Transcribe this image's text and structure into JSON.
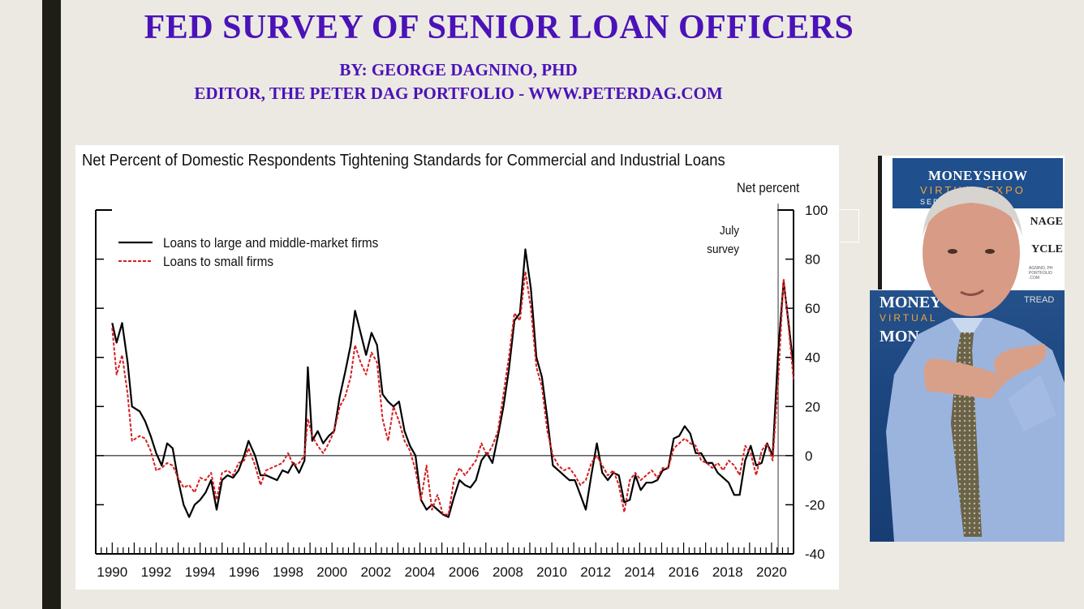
{
  "slide": {
    "title": "FED SURVEY OF SENIOR LOAN OFFICERS",
    "byline": "BY: GEORGE DAGNINO, PHD",
    "editor_line": "EDITOR, THE PETER DAG PORTFOLIO - WWW.PETERDAG.COM",
    "title_color": "#4a12b8"
  },
  "photo": {
    "banner_top_brand": "MONEYSHOW",
    "banner_top_line2": "VIRTUAL EXPO",
    "banner_top_line3": "SEPT 2020",
    "side_text_1": "NAGE",
    "side_text_2": "YCLE",
    "small_text": "AGNINO, PH PORTFOLIO .COM",
    "banner_low_1": "MONEY",
    "banner_low_2": "VIRTUAL",
    "banner_low_3": "MON",
    "banner_low_4": "TREAD"
  },
  "chart_data": {
    "type": "line",
    "title": "Net Percent of Domestic Respondents Tightening Standards for Commercial and Industrial Loans",
    "ylabel": "Net percent",
    "xlabel": "",
    "ylim": [
      -40,
      100
    ],
    "xlim": [
      1989.25,
      2021.0
    ],
    "yticks": [
      "100",
      "80",
      "60",
      "40",
      "20",
      "0",
      "-20",
      "-40"
    ],
    "xticks": [
      "1990",
      "1992",
      "1994",
      "1996",
      "1998",
      "2000",
      "2002",
      "2004",
      "2006",
      "2008",
      "2010",
      "2012",
      "2014",
      "2016",
      "2018",
      "2020"
    ],
    "annotation": {
      "text_line1": "July",
      "text_line2": "survey",
      "x": 2020.3
    },
    "legend_position": "top-left",
    "series": [
      {
        "name": "Loans to large and middle-market firms",
        "color": "#000000",
        "style": "solid",
        "points": [
          [
            1990.0,
            54
          ],
          [
            1990.2,
            46
          ],
          [
            1990.45,
            54
          ],
          [
            1990.7,
            38
          ],
          [
            1990.9,
            20
          ],
          [
            1991.25,
            18
          ],
          [
            1991.5,
            14
          ],
          [
            1991.75,
            8
          ],
          [
            1992.0,
            1
          ],
          [
            1992.25,
            -4
          ],
          [
            1992.5,
            5
          ],
          [
            1992.75,
            3
          ],
          [
            1993.0,
            -10
          ],
          [
            1993.25,
            -20
          ],
          [
            1993.5,
            -25
          ],
          [
            1993.75,
            -20
          ],
          [
            1994.0,
            -18
          ],
          [
            1994.25,
            -15
          ],
          [
            1994.5,
            -10
          ],
          [
            1994.75,
            -22
          ],
          [
            1995.0,
            -10
          ],
          [
            1995.25,
            -8
          ],
          [
            1995.5,
            -9
          ],
          [
            1995.75,
            -6
          ],
          [
            1996.0,
            0
          ],
          [
            1996.2,
            6
          ],
          [
            1996.5,
            0
          ],
          [
            1996.75,
            -8
          ],
          [
            1997.0,
            -8
          ],
          [
            1997.25,
            -9
          ],
          [
            1997.5,
            -10
          ],
          [
            1997.75,
            -6
          ],
          [
            1998.0,
            -7
          ],
          [
            1998.25,
            -3
          ],
          [
            1998.5,
            -7
          ],
          [
            1998.75,
            -2
          ],
          [
            1998.9,
            36
          ],
          [
            1999.1,
            6
          ],
          [
            1999.35,
            10
          ],
          [
            1999.6,
            5
          ],
          [
            1999.85,
            8
          ],
          [
            2000.1,
            10
          ],
          [
            2000.35,
            24
          ],
          [
            2000.6,
            34
          ],
          [
            2000.85,
            45
          ],
          [
            2001.05,
            59
          ],
          [
            2001.3,
            50
          ],
          [
            2001.55,
            41
          ],
          [
            2001.8,
            50
          ],
          [
            2002.05,
            45
          ],
          [
            2002.3,
            25
          ],
          [
            2002.55,
            22
          ],
          [
            2002.8,
            20
          ],
          [
            2003.05,
            22
          ],
          [
            2003.3,
            10
          ],
          [
            2003.55,
            4
          ],
          [
            2003.8,
            0
          ],
          [
            2004.05,
            -18
          ],
          [
            2004.3,
            -22
          ],
          [
            2004.55,
            -20
          ],
          [
            2004.8,
            -22
          ],
          [
            2005.05,
            -24
          ],
          [
            2005.3,
            -25
          ],
          [
            2005.55,
            -17
          ],
          [
            2005.8,
            -10
          ],
          [
            2006.05,
            -12
          ],
          [
            2006.3,
            -13
          ],
          [
            2006.55,
            -10
          ],
          [
            2006.8,
            -2
          ],
          [
            2007.05,
            1
          ],
          [
            2007.3,
            -3
          ],
          [
            2007.55,
            8
          ],
          [
            2007.8,
            20
          ],
          [
            2008.05,
            35
          ],
          [
            2008.3,
            55
          ],
          [
            2008.55,
            58
          ],
          [
            2008.8,
            84
          ],
          [
            2009.05,
            68
          ],
          [
            2009.3,
            40
          ],
          [
            2009.55,
            32
          ],
          [
            2009.8,
            15
          ],
          [
            2010.05,
            -4
          ],
          [
            2010.3,
            -6
          ],
          [
            2010.55,
            -8
          ],
          [
            2010.8,
            -10
          ],
          [
            2011.05,
            -10
          ],
          [
            2011.3,
            -16
          ],
          [
            2011.55,
            -22
          ],
          [
            2011.8,
            -8
          ],
          [
            2012.05,
            5
          ],
          [
            2012.3,
            -7
          ],
          [
            2012.55,
            -10
          ],
          [
            2012.8,
            -7
          ],
          [
            2013.05,
            -8
          ],
          [
            2013.3,
            -19
          ],
          [
            2013.55,
            -18
          ],
          [
            2013.8,
            -8
          ],
          [
            2014.05,
            -14
          ],
          [
            2014.3,
            -11
          ],
          [
            2014.55,
            -11
          ],
          [
            2014.8,
            -10
          ],
          [
            2015.05,
            -6
          ],
          [
            2015.3,
            -5
          ],
          [
            2015.55,
            7
          ],
          [
            2015.8,
            8
          ],
          [
            2016.05,
            12
          ],
          [
            2016.3,
            9
          ],
          [
            2016.55,
            1
          ],
          [
            2016.8,
            1
          ],
          [
            2017.05,
            -3
          ],
          [
            2017.3,
            -3
          ],
          [
            2017.55,
            -7
          ],
          [
            2017.8,
            -9
          ],
          [
            2018.05,
            -11
          ],
          [
            2018.3,
            -16
          ],
          [
            2018.55,
            -16
          ],
          [
            2018.8,
            -2
          ],
          [
            2019.05,
            4
          ],
          [
            2019.3,
            -4
          ],
          [
            2019.55,
            -3
          ],
          [
            2019.8,
            5
          ],
          [
            2020.05,
            0
          ],
          [
            2020.3,
            42
          ],
          [
            2020.55,
            71
          ],
          [
            2020.8,
            52
          ],
          [
            2021.0,
            36
          ]
        ]
      },
      {
        "name": "Loans to small firms",
        "color": "#d62020",
        "style": "dashed",
        "points": [
          [
            1990.0,
            52
          ],
          [
            1990.2,
            33
          ],
          [
            1990.45,
            41
          ],
          [
            1990.7,
            25
          ],
          [
            1990.9,
            6
          ],
          [
            1991.25,
            8
          ],
          [
            1991.5,
            7
          ],
          [
            1991.75,
            2
          ],
          [
            1992.0,
            -6
          ],
          [
            1992.25,
            -5
          ],
          [
            1992.5,
            -3
          ],
          [
            1992.75,
            -4
          ],
          [
            1993.0,
            -9
          ],
          [
            1993.25,
            -13
          ],
          [
            1993.5,
            -12
          ],
          [
            1993.75,
            -15
          ],
          [
            1994.0,
            -9
          ],
          [
            1994.25,
            -10
          ],
          [
            1994.5,
            -7
          ],
          [
            1994.75,
            -18
          ],
          [
            1995.0,
            -7
          ],
          [
            1995.25,
            -6
          ],
          [
            1995.5,
            -8
          ],
          [
            1995.75,
            -3
          ],
          [
            1996.0,
            -2
          ],
          [
            1996.2,
            3
          ],
          [
            1996.5,
            -4
          ],
          [
            1996.75,
            -12
          ],
          [
            1997.0,
            -6
          ],
          [
            1997.25,
            -5
          ],
          [
            1997.5,
            -4
          ],
          [
            1997.75,
            -3
          ],
          [
            1998.0,
            1
          ],
          [
            1998.25,
            -4
          ],
          [
            1998.5,
            -3
          ],
          [
            1998.75,
            0
          ],
          [
            1998.9,
            15
          ],
          [
            1999.1,
            8
          ],
          [
            1999.35,
            4
          ],
          [
            1999.6,
            1
          ],
          [
            1999.85,
            5
          ],
          [
            2000.1,
            10
          ],
          [
            2000.35,
            20
          ],
          [
            2000.6,
            24
          ],
          [
            2000.85,
            32
          ],
          [
            2001.05,
            45
          ],
          [
            2001.3,
            38
          ],
          [
            2001.55,
            33
          ],
          [
            2001.8,
            42
          ],
          [
            2002.05,
            38
          ],
          [
            2002.3,
            15
          ],
          [
            2002.55,
            6
          ],
          [
            2002.8,
            20
          ],
          [
            2003.05,
            14
          ],
          [
            2003.3,
            6
          ],
          [
            2003.55,
            2
          ],
          [
            2003.8,
            -6
          ],
          [
            2004.05,
            -18
          ],
          [
            2004.3,
            -4
          ],
          [
            2004.55,
            -22
          ],
          [
            2004.8,
            -16
          ],
          [
            2005.05,
            -24
          ],
          [
            2005.3,
            -24
          ],
          [
            2005.55,
            -10
          ],
          [
            2005.8,
            -5
          ],
          [
            2006.05,
            -8
          ],
          [
            2006.3,
            -5
          ],
          [
            2006.55,
            -2
          ],
          [
            2006.8,
            5
          ],
          [
            2007.05,
            0
          ],
          [
            2007.3,
            4
          ],
          [
            2007.55,
            10
          ],
          [
            2007.8,
            25
          ],
          [
            2008.05,
            40
          ],
          [
            2008.3,
            58
          ],
          [
            2008.55,
            55
          ],
          [
            2008.8,
            75
          ],
          [
            2009.05,
            60
          ],
          [
            2009.3,
            36
          ],
          [
            2009.55,
            28
          ],
          [
            2009.8,
            10
          ],
          [
            2010.05,
            0
          ],
          [
            2010.3,
            -4
          ],
          [
            2010.55,
            -6
          ],
          [
            2010.8,
            -5
          ],
          [
            2011.05,
            -8
          ],
          [
            2011.3,
            -12
          ],
          [
            2011.55,
            -10
          ],
          [
            2011.8,
            -3
          ],
          [
            2012.05,
            0
          ],
          [
            2012.3,
            -4
          ],
          [
            2012.55,
            -8
          ],
          [
            2012.8,
            -6
          ],
          [
            2013.05,
            -12
          ],
          [
            2013.3,
            -23
          ],
          [
            2013.55,
            -10
          ],
          [
            2013.8,
            -7
          ],
          [
            2014.05,
            -10
          ],
          [
            2014.3,
            -8
          ],
          [
            2014.55,
            -6
          ],
          [
            2014.8,
            -9
          ],
          [
            2015.05,
            -5
          ],
          [
            2015.3,
            -5
          ],
          [
            2015.55,
            3
          ],
          [
            2015.8,
            5
          ],
          [
            2016.05,
            7
          ],
          [
            2016.3,
            5
          ],
          [
            2016.55,
            4
          ],
          [
            2016.8,
            -2
          ],
          [
            2017.05,
            -3
          ],
          [
            2017.3,
            -5
          ],
          [
            2017.55,
            -3
          ],
          [
            2017.8,
            -6
          ],
          [
            2018.05,
            -2
          ],
          [
            2018.3,
            -4
          ],
          [
            2018.55,
            -8
          ],
          [
            2018.8,
            4
          ],
          [
            2019.05,
            1
          ],
          [
            2019.3,
            -8
          ],
          [
            2019.55,
            2
          ],
          [
            2019.8,
            5
          ],
          [
            2020.05,
            -2
          ],
          [
            2020.3,
            30
          ],
          [
            2020.55,
            72
          ],
          [
            2020.8,
            50
          ],
          [
            2021.0,
            31
          ]
        ]
      }
    ]
  }
}
